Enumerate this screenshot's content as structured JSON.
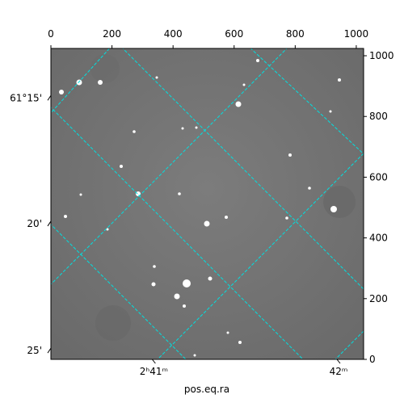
{
  "chart_data": {
    "type": "image",
    "xlabel": "pos.eq.ra",
    "xlim": [
      0,
      1024
    ],
    "ylim": [
      0,
      1024
    ],
    "xticks": [
      0,
      200,
      400,
      600,
      800,
      1000
    ],
    "yticks": [
      0,
      200,
      400,
      600,
      800,
      1000
    ],
    "ra_ticks": [
      {
        "value": 337,
        "label": "2ʰ41ᵐ"
      },
      {
        "value": 942,
        "label": "42ᵐ"
      }
    ],
    "dec_ticks": [
      {
        "value": 861,
        "label": "61°15'"
      },
      {
        "value": 447,
        "label": "20'"
      },
      {
        "value": 29,
        "label": "25'"
      }
    ]
  }
}
